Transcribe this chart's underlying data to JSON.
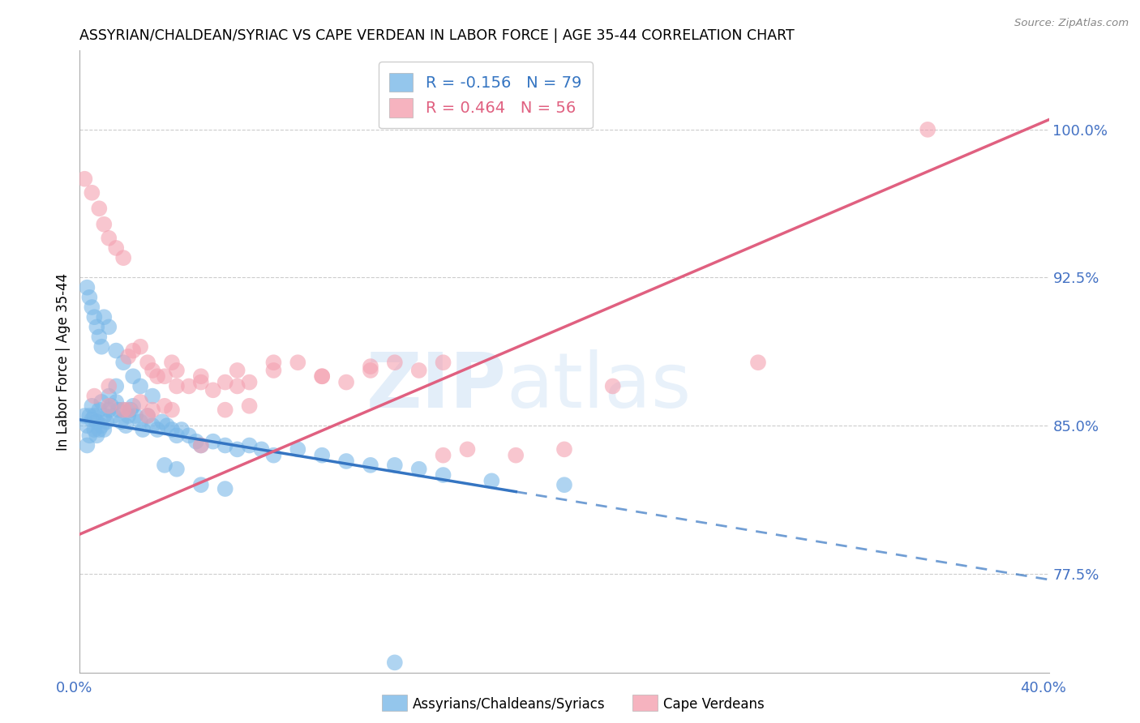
{
  "title": "ASSYRIAN/CHALDEAN/SYRIAC VS CAPE VERDEAN IN LABOR FORCE | AGE 35-44 CORRELATION CHART",
  "source": "Source: ZipAtlas.com",
  "ylabel_ticks": [
    0.775,
    0.85,
    0.925,
    1.0
  ],
  "ylabel_labels": [
    "77.5%",
    "85.0%",
    "92.5%",
    "100.0%"
  ],
  "xlim": [
    0.0,
    0.4
  ],
  "ylim": [
    0.725,
    1.04
  ],
  "blue_R": -0.156,
  "blue_N": 79,
  "pink_R": 0.464,
  "pink_N": 56,
  "blue_color": "#7ab8e8",
  "pink_color": "#f4a0b0",
  "blue_line_color": "#3575c2",
  "pink_line_color": "#e06080",
  "tick_label_color": "#4472c4",
  "legend_label_blue": "Assyrians/Chaldeans/Syriacs",
  "legend_label_pink": "Cape Verdeans",
  "blue_line_x0": 0.0,
  "blue_line_y0": 0.853,
  "blue_line_x1": 0.4,
  "blue_line_y1": 0.772,
  "blue_line_solid_end": 0.18,
  "pink_line_x0": 0.0,
  "pink_line_y0": 0.795,
  "pink_line_x1": 0.4,
  "pink_line_y1": 1.005,
  "blue_scatter_x": [
    0.002,
    0.003,
    0.003,
    0.004,
    0.004,
    0.005,
    0.005,
    0.006,
    0.006,
    0.007,
    0.007,
    0.008,
    0.008,
    0.009,
    0.009,
    0.01,
    0.01,
    0.011,
    0.012,
    0.012,
    0.013,
    0.014,
    0.015,
    0.015,
    0.016,
    0.017,
    0.018,
    0.019,
    0.02,
    0.021,
    0.022,
    0.023,
    0.025,
    0.026,
    0.028,
    0.03,
    0.032,
    0.034,
    0.036,
    0.038,
    0.04,
    0.042,
    0.045,
    0.048,
    0.05,
    0.055,
    0.06,
    0.065,
    0.07,
    0.075,
    0.08,
    0.09,
    0.1,
    0.11,
    0.12,
    0.13,
    0.14,
    0.15,
    0.17,
    0.2,
    0.003,
    0.004,
    0.005,
    0.006,
    0.007,
    0.008,
    0.009,
    0.01,
    0.012,
    0.015,
    0.018,
    0.022,
    0.025,
    0.03,
    0.035,
    0.04,
    0.05,
    0.06,
    0.13
  ],
  "blue_scatter_y": [
    0.855,
    0.85,
    0.84,
    0.845,
    0.855,
    0.853,
    0.86,
    0.855,
    0.848,
    0.852,
    0.845,
    0.858,
    0.848,
    0.862,
    0.85,
    0.855,
    0.848,
    0.852,
    0.858,
    0.865,
    0.86,
    0.855,
    0.862,
    0.87,
    0.858,
    0.852,
    0.858,
    0.85,
    0.855,
    0.858,
    0.86,
    0.855,
    0.852,
    0.848,
    0.855,
    0.85,
    0.848,
    0.852,
    0.85,
    0.848,
    0.845,
    0.848,
    0.845,
    0.842,
    0.84,
    0.842,
    0.84,
    0.838,
    0.84,
    0.838,
    0.835,
    0.838,
    0.835,
    0.832,
    0.83,
    0.83,
    0.828,
    0.825,
    0.822,
    0.82,
    0.92,
    0.915,
    0.91,
    0.905,
    0.9,
    0.895,
    0.89,
    0.905,
    0.9,
    0.888,
    0.882,
    0.875,
    0.87,
    0.865,
    0.83,
    0.828,
    0.82,
    0.818,
    0.73
  ],
  "pink_scatter_x": [
    0.002,
    0.005,
    0.008,
    0.01,
    0.012,
    0.015,
    0.018,
    0.02,
    0.022,
    0.025,
    0.028,
    0.03,
    0.032,
    0.035,
    0.038,
    0.04,
    0.045,
    0.05,
    0.055,
    0.06,
    0.065,
    0.07,
    0.08,
    0.09,
    0.1,
    0.11,
    0.12,
    0.13,
    0.14,
    0.15,
    0.16,
    0.18,
    0.2,
    0.22,
    0.28,
    0.35,
    0.006,
    0.012,
    0.018,
    0.025,
    0.03,
    0.035,
    0.04,
    0.05,
    0.06,
    0.07,
    0.08,
    0.1,
    0.12,
    0.15,
    0.012,
    0.02,
    0.028,
    0.038,
    0.05,
    0.065
  ],
  "pink_scatter_y": [
    0.975,
    0.968,
    0.96,
    0.952,
    0.945,
    0.94,
    0.935,
    0.885,
    0.888,
    0.89,
    0.882,
    0.878,
    0.875,
    0.875,
    0.882,
    0.878,
    0.87,
    0.872,
    0.868,
    0.872,
    0.878,
    0.872,
    0.878,
    0.882,
    0.875,
    0.872,
    0.88,
    0.882,
    0.878,
    0.882,
    0.838,
    0.835,
    0.838,
    0.87,
    0.882,
    1.0,
    0.865,
    0.87,
    0.858,
    0.862,
    0.858,
    0.86,
    0.87,
    0.875,
    0.858,
    0.86,
    0.882,
    0.875,
    0.878,
    0.835,
    0.86,
    0.858,
    0.855,
    0.858,
    0.84,
    0.87
  ]
}
